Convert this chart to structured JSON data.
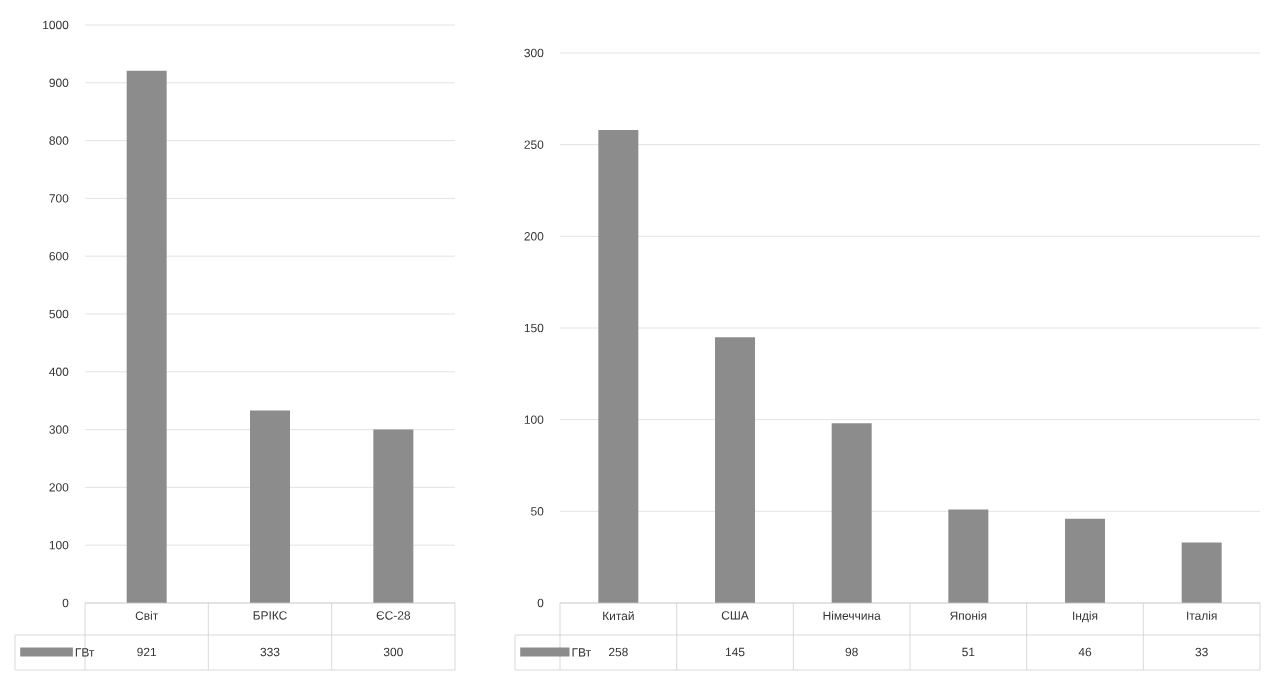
{
  "chart_data": [
    {
      "type": "bar",
      "categories": [
        "Світ",
        "БРІКС",
        "ЄС-28"
      ],
      "series": [
        {
          "name": "ГВт",
          "color": "#8c8c8c",
          "values": [
            921,
            333,
            300
          ]
        }
      ],
      "ylim": [
        0,
        1000
      ],
      "yticks": [
        0,
        100,
        200,
        300,
        400,
        500,
        600,
        700,
        800,
        900,
        1000
      ],
      "grid": "y",
      "data_labels": true,
      "legend": "bottom"
    },
    {
      "type": "bar",
      "categories": [
        "Китай",
        "США",
        "Німеччина",
        "Японія",
        "Індія",
        "Італія"
      ],
      "series": [
        {
          "name": "ГВт",
          "color": "#8c8c8c",
          "values": [
            258,
            145,
            98,
            51,
            46,
            33
          ]
        }
      ],
      "ylim": [
        0,
        300
      ],
      "yticks": [
        0,
        50,
        100,
        150,
        200,
        250,
        300
      ],
      "grid": "y",
      "data_labels": true,
      "legend": "bottom"
    }
  ]
}
